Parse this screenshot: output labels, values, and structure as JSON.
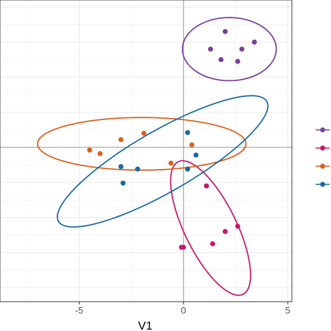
{
  "chart_data": {
    "type": "scatter",
    "title": "",
    "xlabel": "V1",
    "ylabel": "",
    "xlim": [
      -8.8,
      5.2
    ],
    "ylim": [
      -4.4,
      4.2
    ],
    "x_ticks": [
      -5,
      0,
      5
    ],
    "x_tick_labels": [
      "-5",
      "0",
      "5"
    ],
    "grid": true,
    "reference_lines": {
      "x": 0,
      "y": 0
    },
    "legend": "right",
    "series": [
      {
        "color": "#7B3F9E",
        "points": [
          [
            1.3,
            2.8
          ],
          [
            2.0,
            3.3
          ],
          [
            1.8,
            2.5
          ],
          [
            2.8,
            2.8
          ],
          [
            3.4,
            3.0
          ],
          [
            2.6,
            2.45
          ]
        ],
        "ellipse": {
          "cx": 2.2,
          "cy": 2.8,
          "rx": 2.25,
          "ry": 0.9,
          "angle": 0
        }
      },
      {
        "color": "#C8176F",
        "points": [
          [
            1.1,
            -1.1
          ],
          [
            2.0,
            -2.4
          ],
          [
            2.6,
            -2.25
          ],
          [
            1.4,
            -2.75
          ],
          [
            0.0,
            -2.85
          ],
          [
            -0.1,
            -2.85
          ]
        ],
        "ellipse": {
          "cx": 1.3,
          "cy": -2.3,
          "rx": 2.5,
          "ry": 1.05,
          "angle": -45
        }
      },
      {
        "color": "#D95F1B",
        "points": [
          [
            -4.5,
            -0.08
          ],
          [
            -4.0,
            -0.18
          ],
          [
            -3.0,
            0.22
          ],
          [
            -1.9,
            0.4
          ],
          [
            0.4,
            0.07
          ],
          [
            -0.6,
            -0.45
          ]
        ],
        "ellipse": {
          "cx": -2.0,
          "cy": 0.1,
          "rx": 5.0,
          "ry": 0.75,
          "angle": 0
        }
      },
      {
        "color": "#1B6A9C",
        "points": [
          [
            -3.0,
            -0.55
          ],
          [
            -2.2,
            -0.62
          ],
          [
            0.2,
            0.42
          ],
          [
            0.6,
            -0.22
          ],
          [
            0.2,
            -0.62
          ],
          [
            -2.9,
            -1.02
          ]
        ],
        "ellipse": {
          "cx": -1.0,
          "cy": -0.4,
          "rx": 5.3,
          "ry": 0.95,
          "angle": 18
        }
      }
    ]
  }
}
